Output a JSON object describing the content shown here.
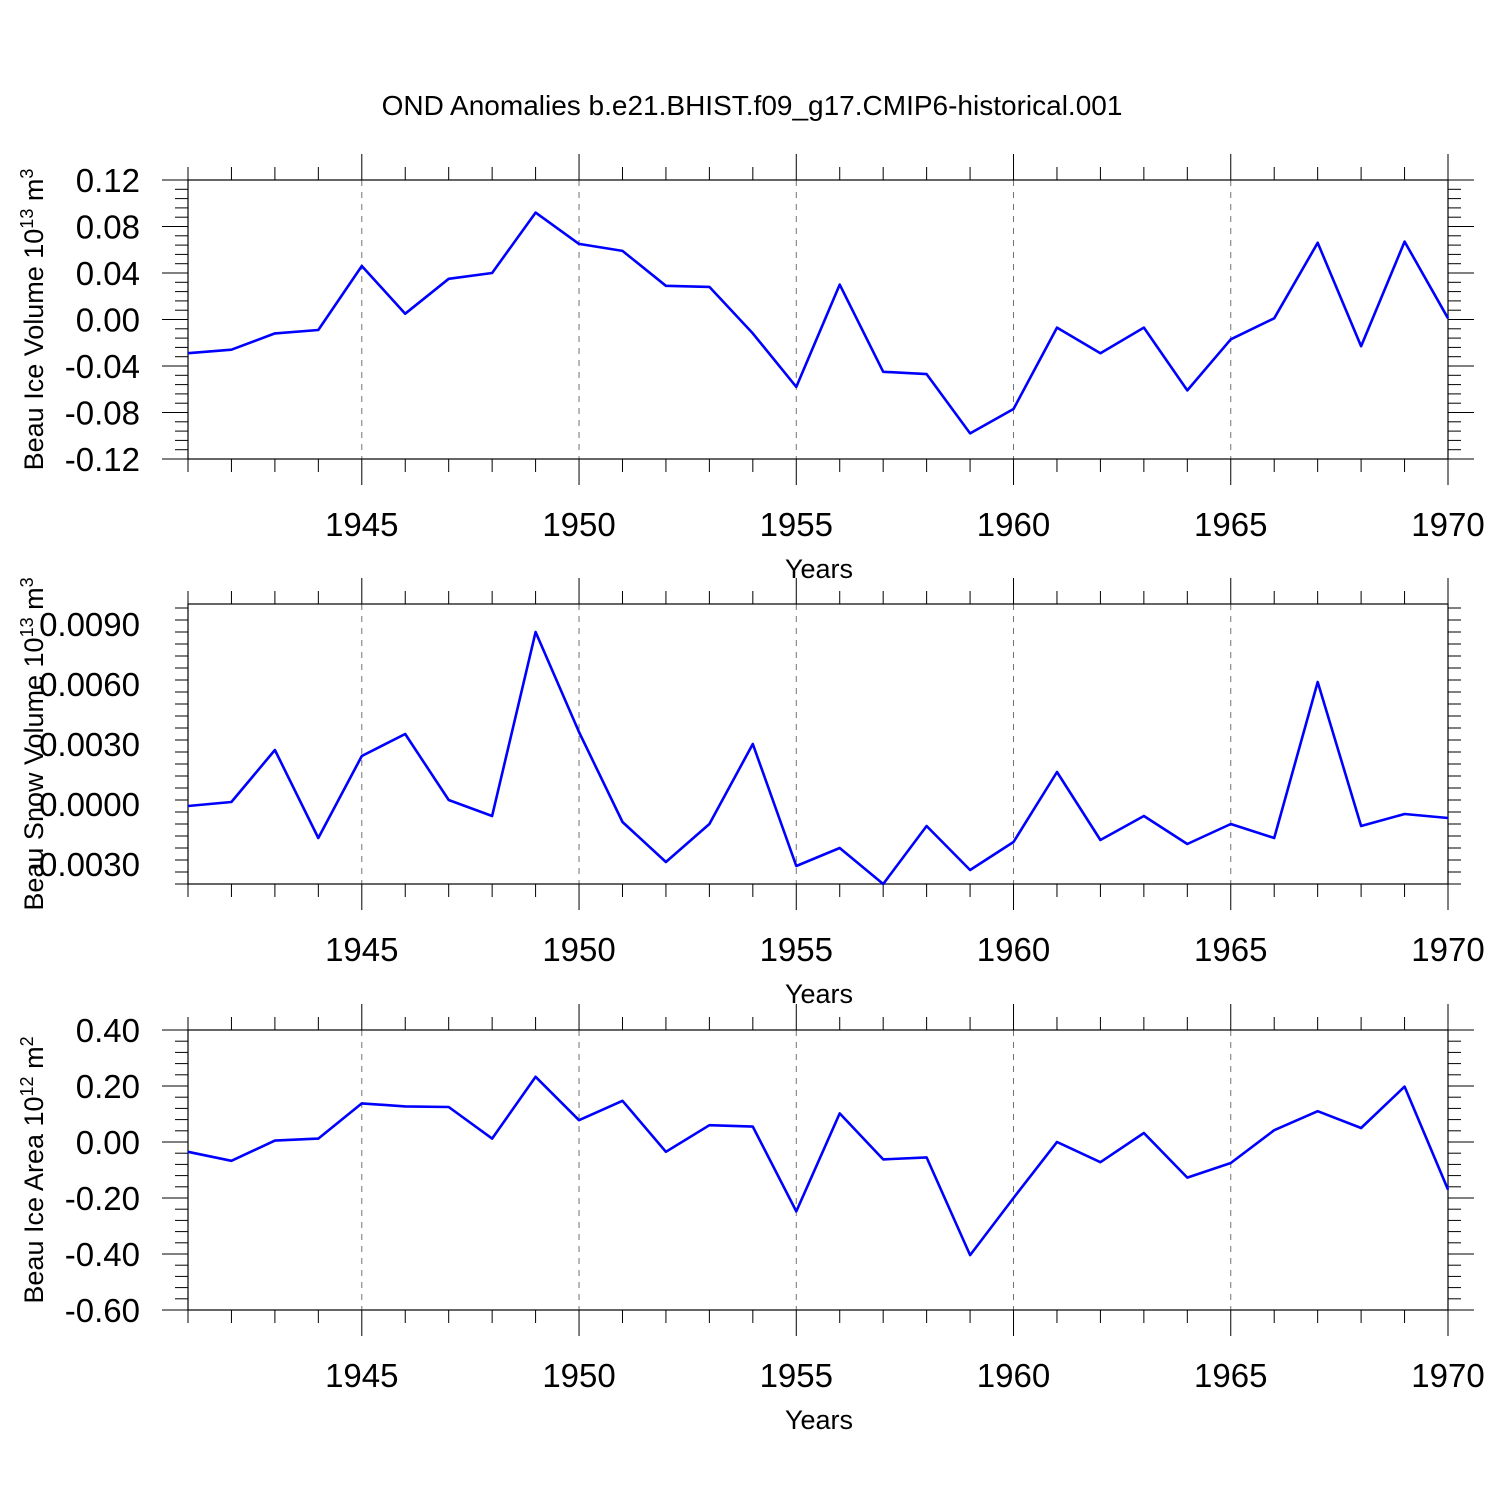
{
  "chart_data": {
    "title": "OND Anomalies b.e21.BHIST.f09_g17.CMIP6-historical.001",
    "series_color": "#0000ff",
    "panels": [
      {
        "type": "line",
        "ylabel_parts": [
          "Beau Ice Volume 10",
          "13",
          " m",
          "3"
        ],
        "xlabel": "Years",
        "xlim": [
          1941,
          1970
        ],
        "ylim": [
          -0.12,
          0.12
        ],
        "yticks": [
          -0.12,
          -0.08,
          -0.04,
          0.0,
          0.04,
          0.08,
          0.12
        ],
        "ytick_labels": [
          "-0.12",
          "-0.08",
          "-0.04",
          "0.00",
          "0.04",
          "0.08",
          "0.12"
        ],
        "xticks": [
          1945,
          1950,
          1955,
          1960,
          1965,
          1970
        ],
        "xtick_labels": [
          "1945",
          "1950",
          "1955",
          "1960",
          "1965",
          "1970"
        ],
        "grid_x": [
          1945,
          1950,
          1955,
          1960,
          1965
        ],
        "series": [
          {
            "name": "Beau Ice Volume",
            "x": [
              1941,
              1942,
              1943,
              1944,
              1945,
              1946,
              1947,
              1948,
              1949,
              1950,
              1951,
              1952,
              1953,
              1954,
              1955,
              1956,
              1957,
              1958,
              1959,
              1960,
              1961,
              1962,
              1963,
              1964,
              1965,
              1966,
              1967,
              1968,
              1969,
              1970
            ],
            "values": [
              -0.029,
              -0.026,
              -0.012,
              -0.009,
              0.046,
              0.005,
              0.035,
              0.04,
              0.092,
              0.065,
              0.059,
              0.029,
              0.028,
              -0.012,
              -0.058,
              0.03,
              -0.045,
              -0.047,
              -0.098,
              -0.077,
              -0.007,
              -0.029,
              -0.007,
              -0.061,
              -0.017,
              0.001,
              0.066,
              -0.023,
              0.067,
              0.001
            ]
          }
        ]
      },
      {
        "type": "line",
        "ylabel_parts": [
          "Beau Snow Volume 10",
          "13",
          " m",
          "3"
        ],
        "xlabel": "Years",
        "xlim": [
          1941,
          1970
        ],
        "ylim": [
          -0.004,
          0.01
        ],
        "yticks": [
          -0.003,
          0.0,
          0.003,
          0.006,
          0.009
        ],
        "ytick_labels": [
          "-0.0030",
          "0.0000",
          "0.0030",
          "0.0060",
          "0.0090"
        ],
        "xticks": [
          1945,
          1950,
          1955,
          1960,
          1965,
          1970
        ],
        "xtick_labels": [
          "1945",
          "1950",
          "1955",
          "1960",
          "1965",
          "1970"
        ],
        "grid_x": [
          1945,
          1950,
          1955,
          1960,
          1965
        ],
        "series": [
          {
            "name": "Beau Snow Volume",
            "x": [
              1941,
              1942,
              1943,
              1944,
              1945,
              1946,
              1947,
              1948,
              1949,
              1950,
              1951,
              1952,
              1953,
              1954,
              1955,
              1956,
              1957,
              1958,
              1959,
              1960,
              1961,
              1962,
              1963,
              1964,
              1965,
              1966,
              1967,
              1968,
              1969,
              1970
            ],
            "values": [
              -0.0001,
              0.0001,
              0.0027,
              -0.0017,
              0.0024,
              0.0035,
              0.0002,
              -0.0006,
              0.0086,
              0.0036,
              -0.0009,
              -0.0029,
              -0.001,
              0.003,
              -0.0031,
              -0.0022,
              -0.004,
              -0.0011,
              -0.0033,
              -0.0019,
              0.0016,
              -0.0018,
              -0.0006,
              -0.002,
              -0.001,
              -0.0017,
              0.0061,
              -0.0011,
              -0.0005,
              -0.0007
            ]
          }
        ]
      },
      {
        "type": "line",
        "ylabel_parts": [
          "Beau Ice Area 10",
          "12",
          " m",
          "2"
        ],
        "xlabel": "Years",
        "xlim": [
          1941,
          1970
        ],
        "ylim": [
          -0.6,
          0.4
        ],
        "yticks": [
          -0.6,
          -0.4,
          -0.2,
          0.0,
          0.2,
          0.4
        ],
        "ytick_labels": [
          "-0.60",
          "-0.40",
          "-0.20",
          "0.00",
          "0.20",
          "0.40"
        ],
        "xticks": [
          1945,
          1950,
          1955,
          1960,
          1965,
          1970
        ],
        "xtick_labels": [
          "1945",
          "1950",
          "1955",
          "1960",
          "1965",
          "1970"
        ],
        "grid_x": [
          1945,
          1950,
          1955,
          1960,
          1965
        ],
        "series": [
          {
            "name": "Beau Ice Area",
            "x": [
              1941,
              1942,
              1943,
              1944,
              1945,
              1946,
              1947,
              1948,
              1949,
              1950,
              1951,
              1952,
              1953,
              1954,
              1955,
              1956,
              1957,
              1958,
              1959,
              1960,
              1961,
              1962,
              1963,
              1964,
              1965,
              1966,
              1967,
              1968,
              1969,
              1970
            ],
            "values": [
              -0.035,
              -0.067,
              0.005,
              0.012,
              0.138,
              0.127,
              0.125,
              0.012,
              0.233,
              0.078,
              0.147,
              -0.035,
              0.06,
              0.055,
              -0.248,
              0.102,
              -0.062,
              -0.055,
              -0.404,
              -0.2,
              0.0,
              -0.072,
              0.032,
              -0.127,
              -0.075,
              0.042,
              0.11,
              0.05,
              0.198,
              -0.17
            ]
          }
        ]
      }
    ]
  }
}
